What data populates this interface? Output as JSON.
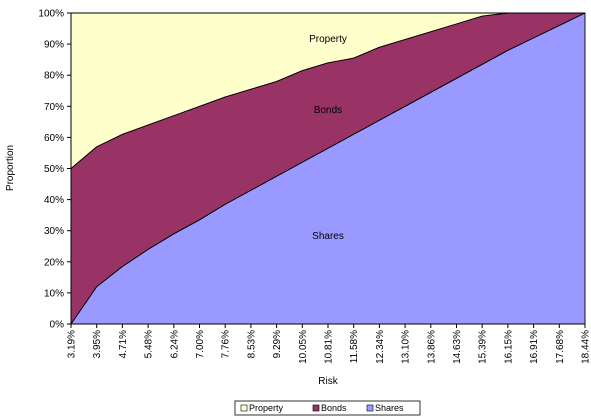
{
  "chart_data": {
    "type": "area",
    "stacked": true,
    "xlabel": "Risk",
    "ylabel": "Proportion",
    "ylim": [
      0,
      100
    ],
    "yticks": [
      "0%",
      "10%",
      "20%",
      "30%",
      "40%",
      "50%",
      "60%",
      "70%",
      "80%",
      "90%",
      "100%"
    ],
    "categories": [
      "3.19%",
      "3.95%",
      "4.71%",
      "5.48%",
      "6.24%",
      "7.00%",
      "7.76%",
      "8.53%",
      "9.29%",
      "10.05%",
      "10.81%",
      "11.58%",
      "12.34%",
      "13.10%",
      "13.86%",
      "14.63%",
      "15.39%",
      "16.15%",
      "16.91%",
      "17.68%",
      "18.44%"
    ],
    "series": [
      {
        "name": "Shares",
        "color": "#9999ff",
        "values": [
          0,
          12,
          18.5,
          24,
          29,
          33.5,
          38.5,
          43,
          47.5,
          52,
          56.5,
          61,
          65.5,
          70,
          74.5,
          79,
          83.5,
          88,
          92,
          96,
          100
        ]
      },
      {
        "name": "Bonds",
        "color": "#993366",
        "values": [
          50,
          45,
          42.5,
          40,
          38,
          36.5,
          34.5,
          32.5,
          30.5,
          29.5,
          27.5,
          24.5,
          23.5,
          21.5,
          19.5,
          17.5,
          15.5,
          12,
          8,
          4,
          0
        ]
      },
      {
        "name": "Property",
        "color": "#ffffcc",
        "values": [
          50,
          43,
          39,
          36,
          33,
          30,
          27,
          24.5,
          22,
          18.5,
          16,
          14.5,
          11,
          8.5,
          6,
          3.5,
          1,
          0,
          0,
          0,
          0
        ]
      }
    ],
    "area_labels": [
      "Property",
      "Bonds",
      "Shares"
    ],
    "legend": {
      "position": "bottom",
      "items": [
        "Property",
        "Bonds",
        "Shares"
      ]
    },
    "grid": false
  }
}
